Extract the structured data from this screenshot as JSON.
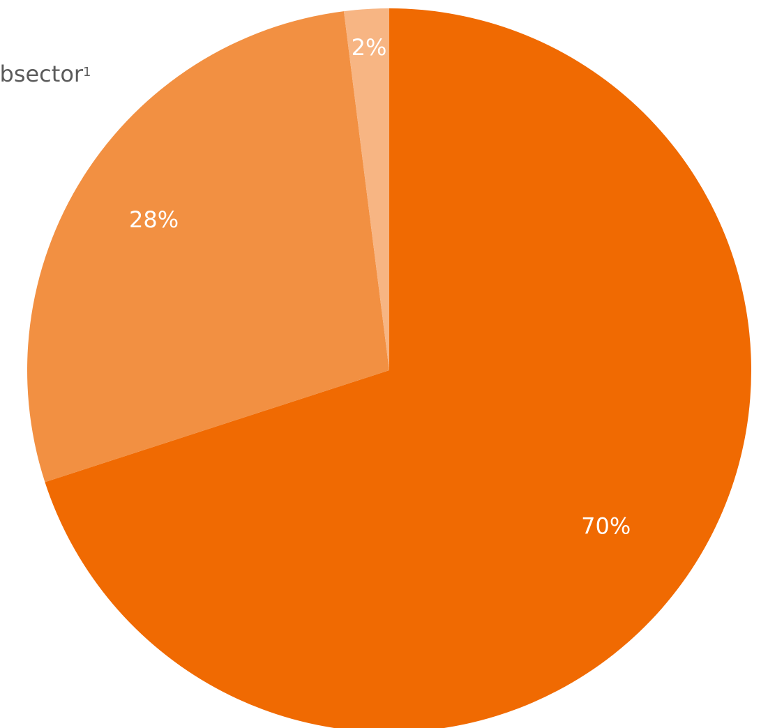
{
  "label": {
    "text": "bsector",
    "footnote": "1"
  },
  "chart_data": {
    "type": "pie",
    "start": "top",
    "direction": "clockwise",
    "slices": [
      {
        "value": 70,
        "label": "70%",
        "color": "#f06a02"
      },
      {
        "value": 28,
        "label": "28%",
        "color": "#f29042"
      },
      {
        "value": 2,
        "label": "2%",
        "color": "#f7b583"
      }
    ]
  }
}
